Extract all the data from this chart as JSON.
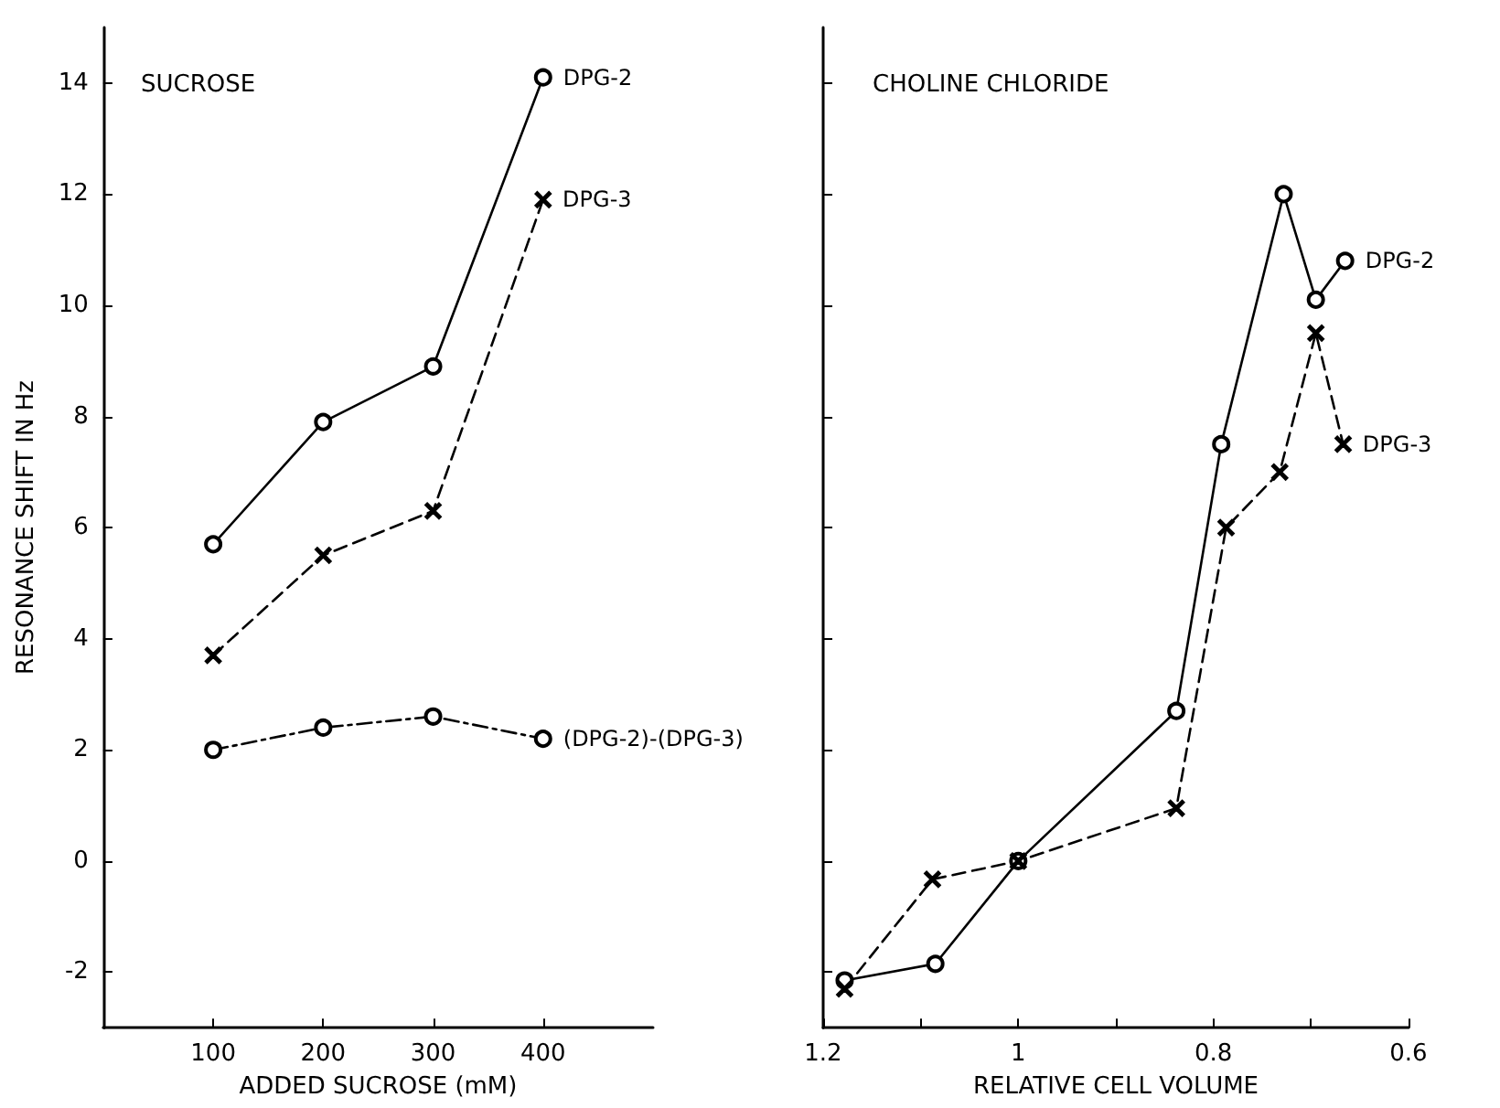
{
  "chart_data": [
    {
      "type": "line",
      "title": "SUCROSE",
      "xlabel": "ADDED SUCROSE (mM)",
      "ylabel": "RESONANCE SHIFT IN Hz",
      "x": [
        100,
        200,
        300,
        400
      ],
      "xlim": [
        0,
        500
      ],
      "xticks": [
        100,
        200,
        300,
        400
      ],
      "ylim": [
        -3,
        15
      ],
      "yticks": [
        -2,
        0,
        2,
        4,
        6,
        8,
        10,
        12,
        14
      ],
      "grid": false,
      "series": [
        {
          "name": "DPG-2",
          "color": "#000000",
          "values": [
            5.7,
            7.9,
            8.9,
            14.1
          ],
          "marker": "circle",
          "line_style": "solid"
        },
        {
          "name": "DPG-3",
          "color": "#000000",
          "values": [
            3.7,
            5.5,
            6.3,
            11.9
          ],
          "marker": "cross",
          "line_style": "dashed"
        },
        {
          "name": "(DPG-2)-(DPG-3)",
          "color": "#000000",
          "values": [
            2.0,
            2.4,
            2.6,
            2.2
          ],
          "marker": "circle",
          "line_style": "dotted"
        }
      ]
    },
    {
      "type": "line",
      "title": "CHOLINE CHLORIDE",
      "xlabel": "RELATIVE CELL VOLUME",
      "xlim": [
        1.2,
        0.6
      ],
      "xticks": [
        1.2,
        {
          "value": 1.1,
          "label": null
        },
        1.0,
        {
          "value": 0.9,
          "label": null
        },
        0.8,
        {
          "value": 0.7,
          "label": null
        },
        0.6
      ],
      "ylim": [
        -3,
        15
      ],
      "yticks": [
        {
          "value": -2,
          "label": null
        },
        {
          "value": 0,
          "label": null
        },
        {
          "value": 2,
          "label": null
        },
        {
          "value": 4,
          "label": null
        },
        {
          "value": 6,
          "label": null
        },
        {
          "value": 8,
          "label": null
        },
        {
          "value": 10,
          "label": null
        },
        {
          "value": 12,
          "label": null
        },
        {
          "value": 14,
          "label": null
        }
      ],
      "tick_labels": "x",
      "grid": false,
      "series": [
        {
          "name": "DPG-2",
          "color": "#000000",
          "x": [
            1.178,
            1.085,
            1.0,
            0.838,
            0.792,
            0.728,
            0.695,
            0.665
          ],
          "values": [
            -2.15,
            -1.85,
            0.0,
            2.7,
            7.5,
            12.0,
            10.1,
            10.8
          ],
          "marker": "circle",
          "line_style": "solid"
        },
        {
          "name": "DPG-3",
          "color": "#000000",
          "x": [
            1.178,
            1.088,
            1.0,
            0.838,
            0.787,
            0.732,
            0.695,
            0.667
          ],
          "values": [
            -2.3,
            -0.33,
            0.0,
            0.95,
            6.0,
            7.0,
            9.5,
            7.5
          ],
          "marker": "cross",
          "line_style": "dashed"
        }
      ]
    }
  ]
}
